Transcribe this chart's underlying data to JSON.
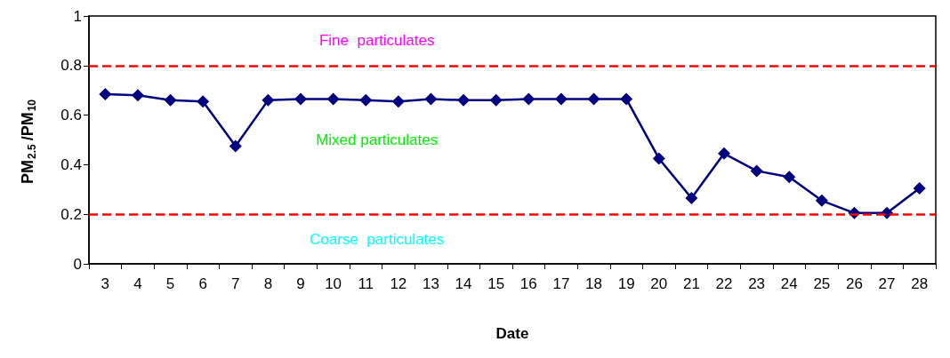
{
  "chart_data": {
    "type": "line",
    "xlabel": "Date",
    "ylabel": "PM$_{2.5}$/PM$_{10}$",
    "categories": [
      "3",
      "4",
      "5",
      "6",
      "7",
      "8",
      "9",
      "10",
      "11",
      "12",
      "13",
      "14",
      "15",
      "16",
      "17",
      "18",
      "19",
      "20",
      "21",
      "22",
      "23",
      "24",
      "25",
      "26",
      "27",
      "28"
    ],
    "series": [
      {
        "color": "#000080",
        "values": [
          0.685,
          0.68,
          0.66,
          0.655,
          0.475,
          0.66,
          0.665,
          0.665,
          0.66,
          0.655,
          0.665,
          0.66,
          0.66,
          0.665,
          0.665,
          0.665,
          0.665,
          0.425,
          0.265,
          0.445,
          0.375,
          0.35,
          0.255,
          0.205,
          0.205,
          0.305
        ]
      }
    ],
    "ylim": [
      0,
      1
    ],
    "yticks": [
      0,
      0.2,
      0.4,
      0.6,
      0.8,
      1
    ],
    "ref_lines": [
      {
        "axis": "y",
        "value": 0.8,
        "color": "#ff0000",
        "line_style": "dashed"
      },
      {
        "axis": "y",
        "value": 0.2,
        "color": "#ff0000",
        "line_style": "dashed"
      }
    ],
    "annotations": [
      "Fine  particulates",
      "Mixed particulates",
      "Coarse  particulates"
    ],
    "marker": "diamond",
    "line_style": "solid",
    "grid": false
  }
}
